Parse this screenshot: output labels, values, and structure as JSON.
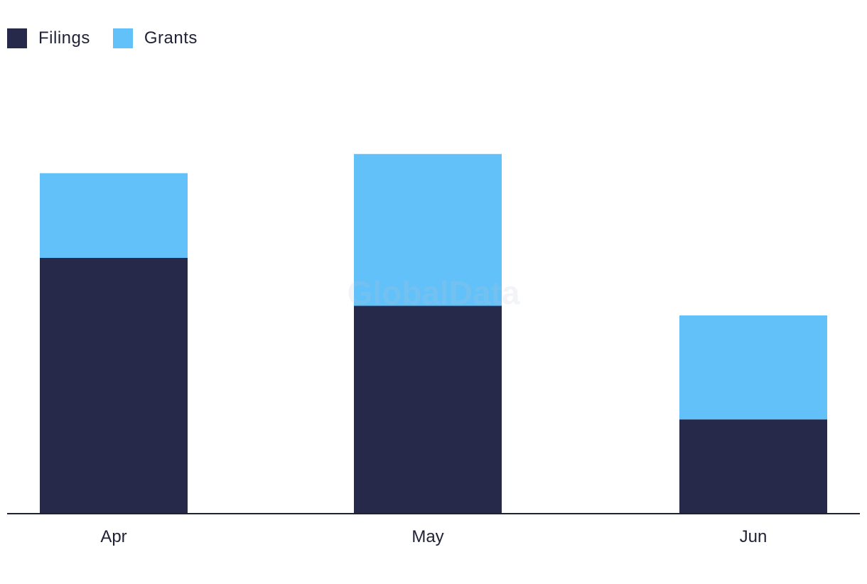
{
  "watermark": "GlobalData",
  "chart_data": {
    "type": "bar",
    "stacked": true,
    "categories": [
      "Apr",
      "May",
      "Jun"
    ],
    "series": [
      {
        "name": "Filings",
        "color": "#27294b",
        "values": [
          80,
          65,
          29.5
        ]
      },
      {
        "name": "Grants",
        "color": "#62c1f8",
        "values": [
          26.5,
          47.5,
          32.5
        ]
      }
    ],
    "title": "",
    "xlabel": "",
    "ylabel": "",
    "ylim": [
      0,
      130
    ],
    "grid": false,
    "legend_position": "top-left"
  }
}
